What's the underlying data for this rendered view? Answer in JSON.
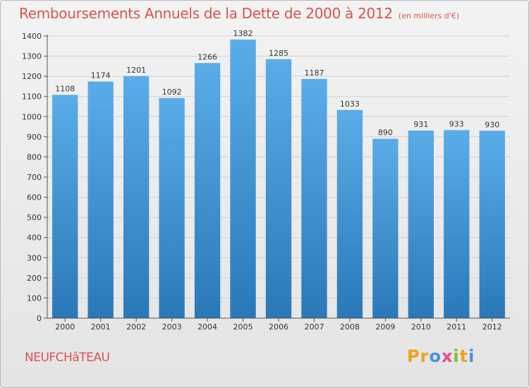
{
  "header": {
    "title": "Remboursements Annuels de la Dette de 2000 à 2012",
    "unit": "(en milliers d'€)"
  },
  "footer": {
    "commune": "NEUFCHâTEAU",
    "brand": "Proxiti",
    "brand_letters": [
      "P",
      "r",
      "o",
      "x",
      "i",
      "t",
      "i"
    ],
    "brand_colors": [
      "#f0a020",
      "#f0a020",
      "#4a90d9",
      "#e84a8a",
      "#7bbf3a",
      "#f0a020",
      "#4a90d9"
    ]
  },
  "chart_data": {
    "type": "bar",
    "title": "Remboursements Annuels de la Dette de 2000 à 2012",
    "xlabel": "",
    "ylabel": "",
    "categories": [
      "2000",
      "2001",
      "2002",
      "2003",
      "2004",
      "2005",
      "2006",
      "2007",
      "2008",
      "2009",
      "2010",
      "2011",
      "2012"
    ],
    "values": [
      1108,
      1174,
      1201,
      1092,
      1266,
      1382,
      1285,
      1187,
      1033,
      890,
      931,
      933,
      930
    ],
    "value_labels": [
      "1108",
      "1174",
      "1201",
      "1092",
      "1266",
      "1382",
      "1285",
      "1187",
      "1033",
      "890",
      "931",
      "933",
      "930"
    ],
    "ylim": [
      0,
      1400
    ],
    "yticks": [
      0,
      100,
      200,
      300,
      400,
      500,
      600,
      700,
      800,
      900,
      1000,
      1100,
      1200,
      1300,
      1400
    ],
    "grid": true,
    "legend": "none",
    "bar_color_top": "#5aade8",
    "bar_color_bottom": "#2a78b8",
    "text_color": "#333333",
    "title_color": "#d9534f"
  }
}
